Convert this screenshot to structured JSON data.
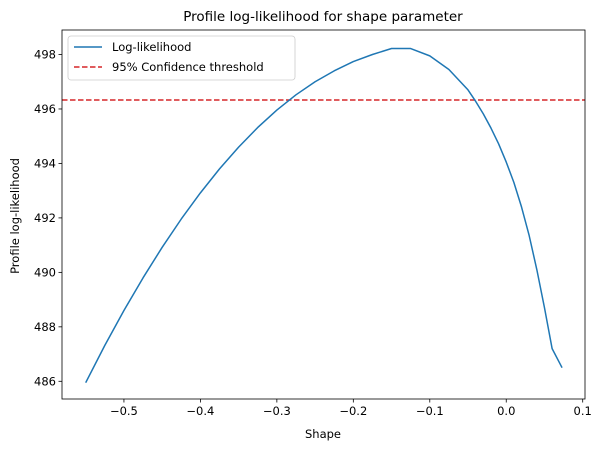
{
  "chart_data": {
    "type": "line",
    "title": "Profile log-likelihood for shape parameter",
    "xlabel": "Shape",
    "ylabel": "Profile log-likelihood",
    "xlim": [
      -0.581,
      0.103
    ],
    "ylim": [
      485.35,
      498.9
    ],
    "xticks": [
      -0.5,
      -0.4,
      -0.3,
      -0.2,
      -0.1,
      0.0,
      0.1
    ],
    "xtick_labels": [
      "−0.5",
      "−0.4",
      "−0.3",
      "−0.2",
      "−0.1",
      "0.0",
      "0.1"
    ],
    "yticks": [
      486,
      488,
      490,
      492,
      494,
      496,
      498
    ],
    "ytick_labels": [
      "486",
      "488",
      "490",
      "492",
      "494",
      "496",
      "498"
    ],
    "grid": false,
    "legend_position": "top-left",
    "series": [
      {
        "name": "Log-likelihood",
        "color": "#1f77b4",
        "style": "solid",
        "x": [
          -0.55,
          -0.525,
          -0.5,
          -0.475,
          -0.45,
          -0.425,
          -0.4,
          -0.375,
          -0.35,
          -0.325,
          -0.3,
          -0.275,
          -0.25,
          -0.225,
          -0.2,
          -0.175,
          -0.15,
          -0.125,
          -0.1,
          -0.075,
          -0.05,
          -0.04,
          -0.03,
          -0.02,
          -0.01,
          0.0,
          0.01,
          0.02,
          0.03,
          0.04,
          0.05,
          0.06,
          0.073
        ],
        "y": [
          485.95,
          487.32,
          488.6,
          489.8,
          490.92,
          491.96,
          492.92,
          493.8,
          494.6,
          495.32,
          495.96,
          496.52,
          497.0,
          497.4,
          497.74,
          498.0,
          498.22,
          498.22,
          497.95,
          497.45,
          496.7,
          496.28,
          495.82,
          495.3,
          494.72,
          494.05,
          493.3,
          492.4,
          491.35,
          490.1,
          488.7,
          487.2,
          486.5
        ]
      },
      {
        "name": "95% Confidence threshold",
        "color": "#d62728",
        "style": "dashed",
        "hline": 496.33
      }
    ]
  }
}
